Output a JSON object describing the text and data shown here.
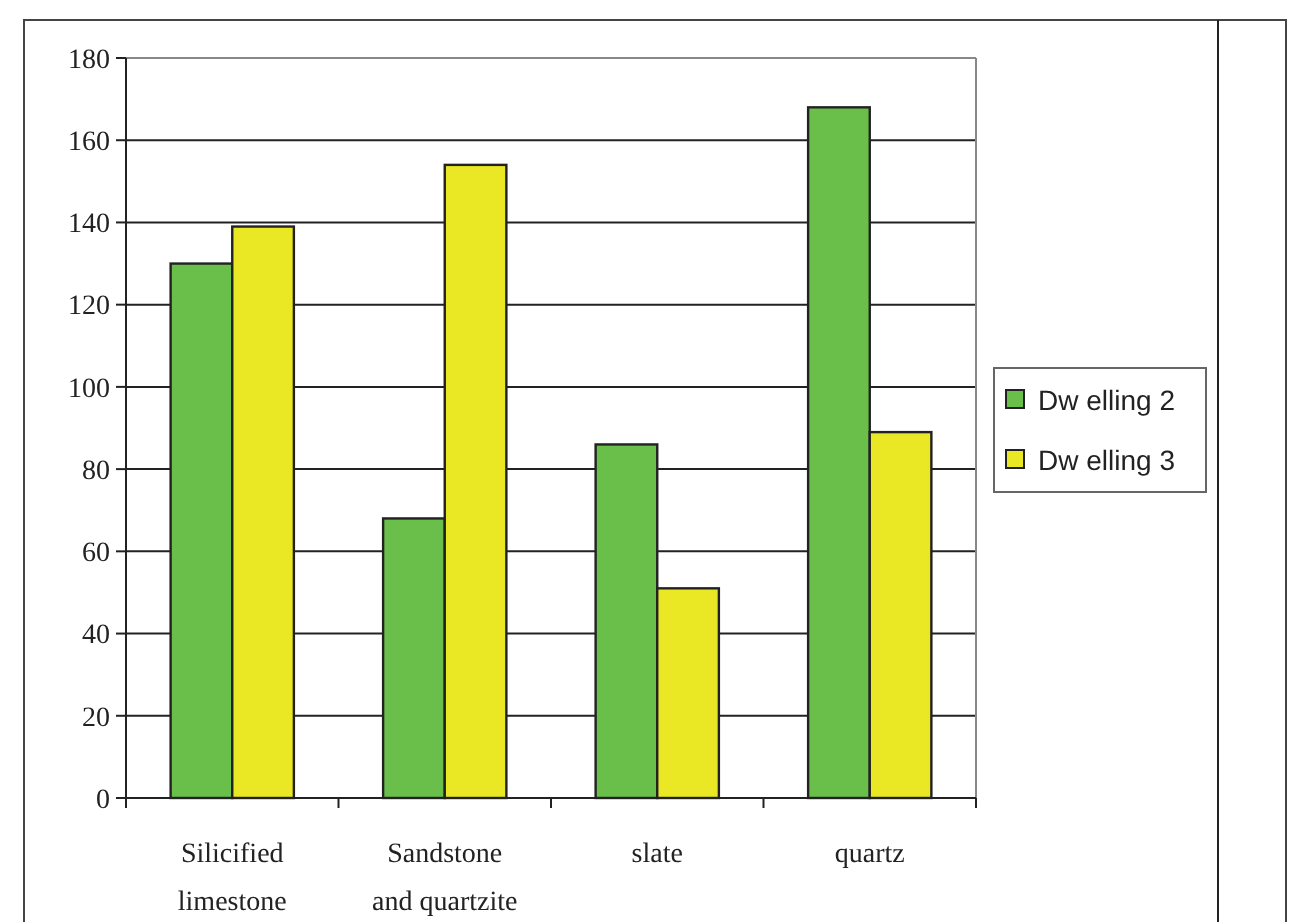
{
  "chart_data": {
    "type": "bar",
    "categories": [
      "Silicified\nlimestone",
      "Sandstone\nand quartzite",
      "slate",
      "quartz"
    ],
    "series": [
      {
        "name": "Dw elling 2",
        "color": "#6abf4b",
        "values": [
          130,
          68,
          86,
          168
        ]
      },
      {
        "name": "Dw elling 3",
        "color": "#eae724",
        "values": [
          139,
          154,
          51,
          89
        ]
      }
    ],
    "ylim": [
      0,
      180
    ],
    "yticks": [
      0,
      20,
      40,
      60,
      80,
      100,
      120,
      140,
      160,
      180
    ],
    "grid": "y",
    "legend": "right"
  }
}
